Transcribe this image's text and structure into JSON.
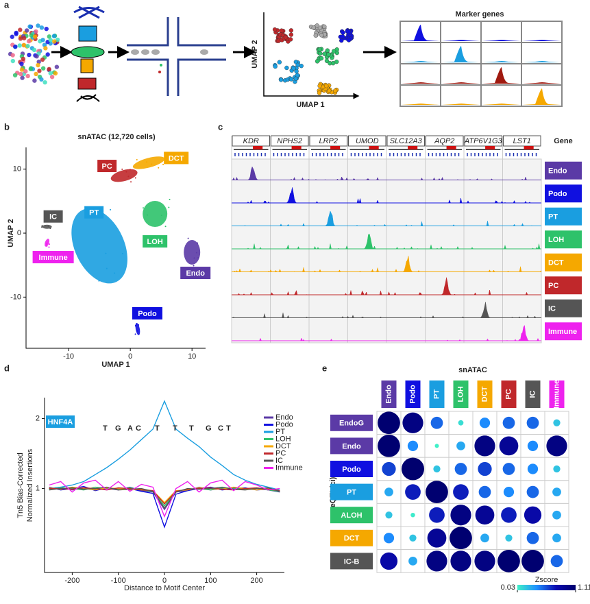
{
  "panel_labels": [
    "a",
    "b",
    "c",
    "d",
    "e"
  ],
  "panel_a": {
    "marker_title": "Marker genes",
    "x_label": "UMAP 1",
    "y_label": "UMAP 2"
  },
  "panel_b": {
    "type": "scatter",
    "title": "snATAC (12,720 cells)",
    "x_label": "UMAP 1",
    "y_label": "UMAP 2",
    "xlim": [
      -16.9,
      12.2
    ],
    "ylim": [
      -18,
      13.4
    ],
    "xticks": [
      -10,
      0,
      10
    ],
    "yticks": [
      -10,
      0,
      10
    ],
    "clusters": [
      {
        "name": "PT",
        "color": "#1a9ee0",
        "x": -5,
        "y": -2
      },
      {
        "name": "LOH",
        "color": "#2ec26a",
        "x": 4,
        "y": 3
      },
      {
        "name": "Endo",
        "color": "#5b3aa6",
        "x": 10,
        "y": -3
      },
      {
        "name": "PC",
        "color": "#c0282b",
        "x": -1,
        "y": 9
      },
      {
        "name": "DCT",
        "color": "#f5a800",
        "x": 3,
        "y": 11
      },
      {
        "name": "IC",
        "color": "#555555",
        "x": -13.5,
        "y": 1
      },
      {
        "name": "Immune",
        "color": "#ee22ee",
        "x": -13.5,
        "y": -1.5
      },
      {
        "name": "Podo",
        "color": "#1010e0",
        "x": 1.2,
        "y": -15
      }
    ]
  },
  "panel_c": {
    "gene_header": "Gene",
    "genes": [
      "KDR",
      "NPHS2",
      "LRP2",
      "UMOD",
      "SLC12A3",
      "AQP2",
      "ATP6V1G3",
      "LST1"
    ],
    "tracks": [
      {
        "name": "Endo",
        "color": "#5b3aa6"
      },
      {
        "name": "Podo",
        "color": "#1010e0"
      },
      {
        "name": "PT",
        "color": "#1a9ee0"
      },
      {
        "name": "LOH",
        "color": "#2ec26a"
      },
      {
        "name": "DCT",
        "color": "#f5a800"
      },
      {
        "name": "PC",
        "color": "#c0282b"
      },
      {
        "name": "IC",
        "color": "#555555"
      },
      {
        "name": "Immune",
        "color": "#ee22ee"
      }
    ]
  },
  "panel_d": {
    "type": "line",
    "label": "HNF4A",
    "motif": "TGACTTTGCT",
    "x_label": "Distance to Motif Center",
    "y_label": [
      "Tn5 Bias-Corrected",
      "Normalized Insertions"
    ],
    "xlim": [
      -260,
      260
    ],
    "ylim": [
      -0.2,
      2.3
    ],
    "xticks": [
      -200,
      -100,
      0,
      100,
      200
    ],
    "yticks": [
      1,
      2
    ],
    "x": [
      -250,
      -225,
      -200,
      -175,
      -150,
      -125,
      -100,
      -75,
      -50,
      -25,
      0,
      25,
      50,
      75,
      100,
      125,
      150,
      175,
      200,
      225,
      250
    ],
    "series": [
      {
        "name": "Endo",
        "color": "#5b3aa6",
        "values": [
          1.0,
          1.02,
          0.98,
          1.01,
          0.99,
          1.0,
          0.98,
          1.02,
          0.97,
          0.95,
          0.7,
          0.95,
          0.97,
          1.02,
          0.98,
          1.0,
          1.01,
          0.99,
          1.0,
          0.98,
          0.95
        ]
      },
      {
        "name": "Podo",
        "color": "#1010e0",
        "values": [
          1.02,
          0.98,
          1.0,
          1.03,
          0.97,
          1.01,
          0.99,
          1.0,
          0.96,
          0.93,
          0.45,
          0.92,
          0.97,
          1.0,
          1.02,
          0.98,
          1.0,
          1.01,
          0.98,
          0.99,
          0.96
        ]
      },
      {
        "name": "PT",
        "color": "#1a9ee0",
        "values": [
          1.0,
          1.02,
          1.05,
          1.1,
          1.2,
          1.3,
          1.42,
          1.55,
          1.7,
          1.85,
          2.25,
          1.85,
          1.72,
          1.6,
          1.45,
          1.33,
          1.2,
          1.12,
          1.06,
          1.02,
          0.98
        ]
      },
      {
        "name": "LOH",
        "color": "#2ec26a",
        "values": [
          0.99,
          1.01,
          1.0,
          0.98,
          1.02,
          1.0,
          0.99,
          1.01,
          0.98,
          0.96,
          0.75,
          0.96,
          0.99,
          1.0,
          0.98,
          1.01,
          1.0,
          0.99,
          1.01,
          0.98,
          0.96
        ]
      },
      {
        "name": "DCT",
        "color": "#f5a800",
        "values": [
          1.01,
          0.99,
          1.02,
          1.0,
          0.98,
          1.01,
          1.0,
          0.98,
          0.99,
          0.97,
          0.8,
          0.97,
          0.98,
          1.01,
          1.0,
          0.99,
          1.02,
          1.0,
          0.98,
          1.0,
          0.97
        ]
      },
      {
        "name": "PC",
        "color": "#c0282b",
        "values": [
          1.0,
          1.0,
          0.99,
          1.01,
          1.0,
          0.98,
          1.01,
          1.0,
          0.98,
          0.97,
          0.78,
          0.96,
          0.99,
          1.0,
          1.01,
          0.99,
          0.98,
          1.0,
          1.01,
          0.99,
          0.97
        ]
      },
      {
        "name": "IC",
        "color": "#555555",
        "values": [
          0.98,
          1.0,
          1.01,
          0.99,
          1.0,
          1.02,
          0.98,
          0.99,
          1.0,
          0.96,
          0.72,
          0.95,
          1.0,
          0.99,
          1.0,
          1.02,
          0.99,
          0.98,
          1.0,
          1.01,
          0.96
        ]
      },
      {
        "name": "Immune",
        "color": "#ee22ee",
        "values": [
          1.05,
          1.1,
          0.95,
          1.08,
          1.12,
          0.98,
          1.1,
          0.96,
          1.06,
          1.02,
          0.6,
          1.0,
          1.1,
          0.95,
          1.08,
          1.12,
          0.97,
          1.1,
          1.05,
          0.98,
          1.0
        ]
      }
    ]
  },
  "panel_e": {
    "type": "dot-matrix",
    "title": "snATAC",
    "y_label": "eQTL(ci)",
    "columns": [
      {
        "name": "Endo",
        "color": "#5b3aa6"
      },
      {
        "name": "Podo",
        "color": "#1010e0"
      },
      {
        "name": "PT",
        "color": "#1a9ee0"
      },
      {
        "name": "LOH",
        "color": "#2ec26a"
      },
      {
        "name": "DCT",
        "color": "#f5a800"
      },
      {
        "name": "PC",
        "color": "#c0282b"
      },
      {
        "name": "IC",
        "color": "#555555"
      },
      {
        "name": "Immune",
        "color": "#ee22ee"
      }
    ],
    "rows": [
      {
        "name": "EndoG",
        "color": "#5b3aa6"
      },
      {
        "name": "Endo",
        "color": "#5b3aa6"
      },
      {
        "name": "Podo",
        "color": "#1010e0"
      },
      {
        "name": "PT",
        "color": "#1a9ee0"
      },
      {
        "name": "ALOH",
        "color": "#2ec26a"
      },
      {
        "name": "DCT",
        "color": "#f5a800"
      },
      {
        "name": "IC-B",
        "color": "#555555"
      }
    ],
    "values": [
      [
        1.1,
        1.0,
        0.5,
        0.1,
        0.4,
        0.5,
        0.5,
        0.2
      ],
      [
        1.1,
        0.4,
        0.03,
        0.3,
        1.0,
        0.9,
        0.4,
        1.0
      ],
      [
        0.6,
        1.11,
        0.2,
        0.5,
        0.6,
        0.5,
        0.4,
        0.2
      ],
      [
        0.3,
        0.7,
        1.1,
        0.7,
        0.5,
        0.4,
        0.5,
        0.3
      ],
      [
        0.2,
        0.05,
        0.7,
        1.0,
        0.9,
        0.7,
        0.8,
        0.3
      ],
      [
        0.4,
        0.2,
        0.9,
        1.1,
        0.3,
        0.2,
        0.5,
        0.3
      ],
      [
        0.8,
        0.3,
        1.0,
        1.0,
        1.0,
        1.1,
        1.1,
        0.5
      ]
    ],
    "colorbar_label": "Zscore",
    "zlim": [
      0.03,
      1.11
    ],
    "zticks": [
      0.03,
      1.11
    ],
    "colormap": [
      "#40f0c8",
      "#1e90ff",
      "#0a0ab0",
      "#00006e"
    ]
  }
}
